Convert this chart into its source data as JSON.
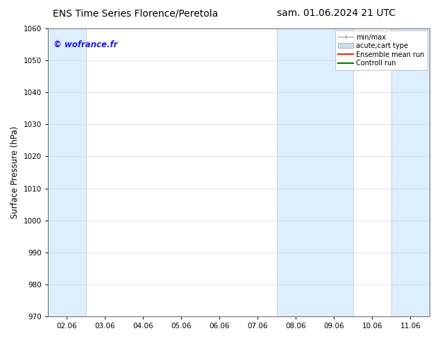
{
  "title_left": "ENS Time Series Florence/Peretola",
  "title_right": "sam. 01.06.2024 21 UTC",
  "ylabel": "Surface Pressure (hPa)",
  "ylim": [
    970,
    1060
  ],
  "yticks": [
    970,
    980,
    990,
    1000,
    1010,
    1020,
    1030,
    1040,
    1050,
    1060
  ],
  "xlim_start": -0.5,
  "xlim_end": 9.5,
  "xtick_labels": [
    "02.06",
    "03.06",
    "04.06",
    "05.06",
    "06.06",
    "07.06",
    "08.06",
    "09.06",
    "10.06",
    "11.06"
  ],
  "xtick_positions": [
    0,
    1,
    2,
    3,
    4,
    5,
    6,
    7,
    8,
    9
  ],
  "shaded_bands": [
    {
      "xmin": -0.5,
      "xmax": 0.5
    },
    {
      "xmin": 5.5,
      "xmax": 7.5
    },
    {
      "xmin": 8.5,
      "xmax": 9.5
    }
  ],
  "band_color": "#ddeeff",
  "band_edge_color": "#bbccdd",
  "watermark": "© wofrance.fr",
  "watermark_color": "#1a1aee",
  "background_color": "#ffffff",
  "legend_entries": [
    {
      "label": "min/max",
      "color": "#aaaaaa",
      "type": "errorbar"
    },
    {
      "label": "acute;cart type",
      "color": "#ccddee",
      "type": "bar"
    },
    {
      "label": "Ensemble mean run",
      "color": "#ff2200",
      "type": "line"
    },
    {
      "label": "Controll run",
      "color": "#007700",
      "type": "line"
    }
  ],
  "title_fontsize": 10,
  "tick_fontsize": 7.5,
  "ylabel_fontsize": 8.5,
  "legend_fontsize": 7,
  "watermark_fontsize": 8.5
}
